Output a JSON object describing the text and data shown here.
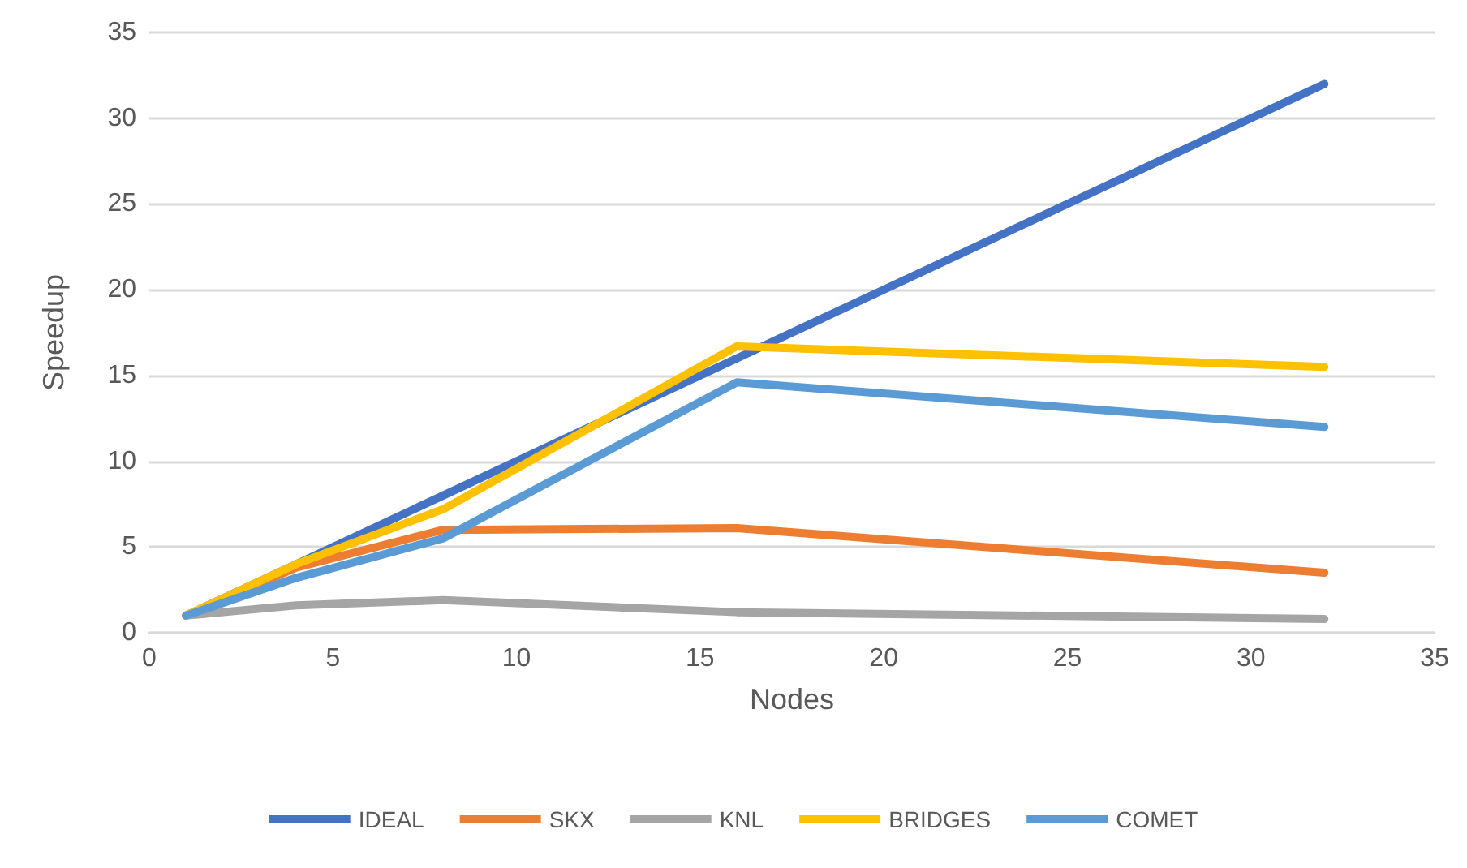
{
  "chart_data": {
    "type": "line",
    "xlabel": "Nodes",
    "ylabel": "Speedup",
    "x": [
      1,
      4,
      8,
      16,
      32
    ],
    "series": [
      {
        "name": "IDEAL",
        "color": "#4472c4",
        "values": [
          1,
          4,
          8,
          16,
          32
        ]
      },
      {
        "name": "SKX",
        "color": "#ed7d31",
        "values": [
          1,
          3.8,
          6,
          6.1,
          3.5
        ]
      },
      {
        "name": "KNL",
        "color": "#a5a5a5",
        "values": [
          1,
          1.6,
          1.9,
          1.2,
          0.8
        ]
      },
      {
        "name": "BRIDGES",
        "color": "#ffc000",
        "values": [
          1,
          4,
          7.2,
          16.7,
          15.5
        ]
      },
      {
        "name": "COMET",
        "color": "#5b9bd5",
        "values": [
          1,
          3.2,
          5.5,
          14.6,
          12
        ]
      }
    ],
    "xlim": [
      0,
      35
    ],
    "xticks": [
      0,
      5,
      10,
      15,
      20,
      25,
      30,
      35
    ],
    "ylim": [
      0,
      35
    ],
    "yticks": [
      0,
      5,
      10,
      15,
      20,
      25,
      30,
      35
    ],
    "grid": "y",
    "legend": "bottom",
    "marker": "none",
    "line_style": "solid"
  }
}
